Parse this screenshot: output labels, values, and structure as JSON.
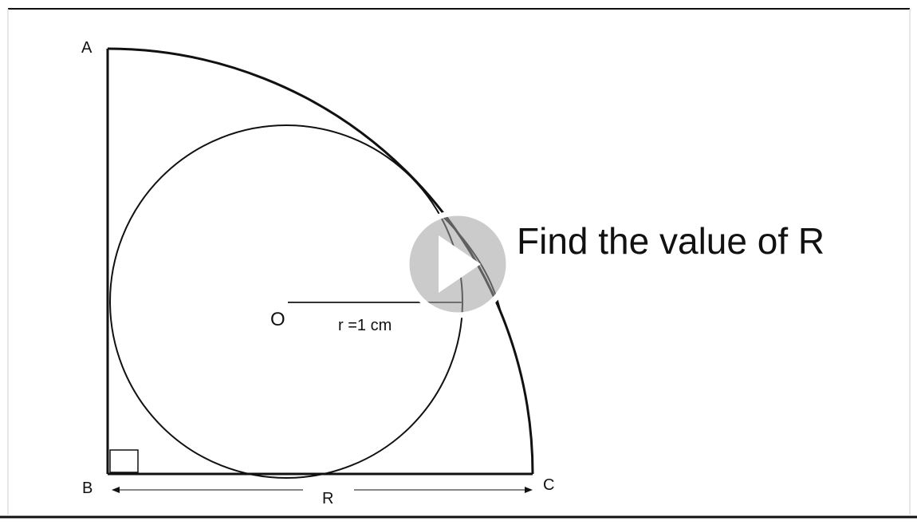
{
  "diagram": {
    "points": {
      "A": "A",
      "B": "B",
      "C": "C",
      "O": "O"
    },
    "radius_label": "r =1 cm",
    "dimension_label": "R"
  },
  "question": {
    "text": "Find the value of R"
  },
  "video": {
    "play_icon": "play-icon"
  }
}
